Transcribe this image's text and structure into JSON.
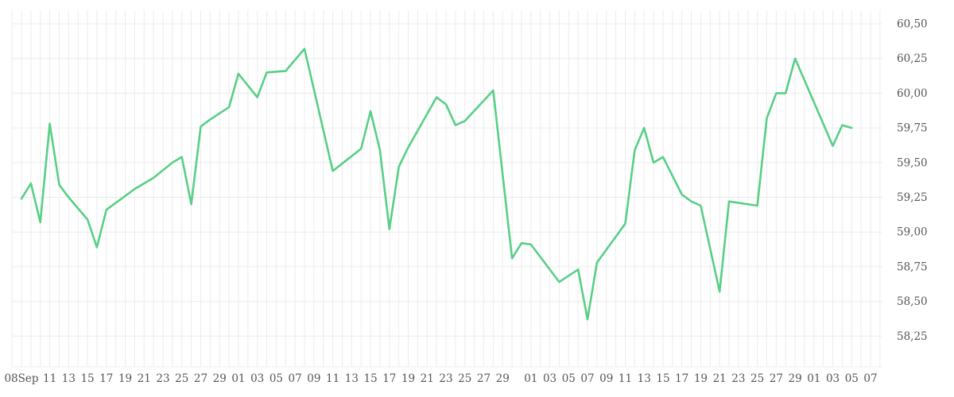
{
  "colors": {
    "line": "#58CF86",
    "grid": "#ececec",
    "axis_text": "#555555",
    "background": "#ffffff"
  },
  "chart_data": {
    "type": "line",
    "title": "",
    "xlabel": "",
    "ylabel": "",
    "legend": "none",
    "grid": "on",
    "x_unit": "calendar days, offset from first point (08 Sep)",
    "ylim": [
      58.0,
      60.625
    ],
    "xlim_days": [
      -1,
      91
    ],
    "y_ticks": [
      {
        "v": 60.5,
        "label": "60,50"
      },
      {
        "v": 60.25,
        "label": "60,25"
      },
      {
        "v": 60.0,
        "label": "60,00"
      },
      {
        "v": 59.75,
        "label": "59,75"
      },
      {
        "v": 59.5,
        "label": "59,50"
      },
      {
        "v": 59.25,
        "label": "59,25"
      },
      {
        "v": 59.0,
        "label": "59,00"
      },
      {
        "v": 58.75,
        "label": "58,75"
      },
      {
        "v": 58.5,
        "label": "58,50"
      },
      {
        "v": 58.25,
        "label": "58,25"
      }
    ],
    "x_ticks": [
      {
        "d": 0,
        "label": "08Sep"
      },
      {
        "d": 3,
        "label": "11"
      },
      {
        "d": 5,
        "label": "13"
      },
      {
        "d": 7,
        "label": "15"
      },
      {
        "d": 9,
        "label": "17"
      },
      {
        "d": 11,
        "label": "19"
      },
      {
        "d": 13,
        "label": "21"
      },
      {
        "d": 15,
        "label": "23"
      },
      {
        "d": 17,
        "label": "25"
      },
      {
        "d": 19,
        "label": "27"
      },
      {
        "d": 21,
        "label": "29"
      },
      {
        "d": 23,
        "label": "01"
      },
      {
        "d": 25,
        "label": "03"
      },
      {
        "d": 27,
        "label": "05"
      },
      {
        "d": 29,
        "label": "07"
      },
      {
        "d": 31,
        "label": "09"
      },
      {
        "d": 33,
        "label": "11"
      },
      {
        "d": 35,
        "label": "13"
      },
      {
        "d": 37,
        "label": "15"
      },
      {
        "d": 39,
        "label": "17"
      },
      {
        "d": 41,
        "label": "19"
      },
      {
        "d": 43,
        "label": "21"
      },
      {
        "d": 45,
        "label": "23"
      },
      {
        "d": 47,
        "label": "25"
      },
      {
        "d": 49,
        "label": "27"
      },
      {
        "d": 51,
        "label": "29"
      },
      {
        "d": 54,
        "label": "01"
      },
      {
        "d": 56,
        "label": "03"
      },
      {
        "d": 58,
        "label": "05"
      },
      {
        "d": 60,
        "label": "07"
      },
      {
        "d": 62,
        "label": "09"
      },
      {
        "d": 64,
        "label": "11"
      },
      {
        "d": 66,
        "label": "13"
      },
      {
        "d": 68,
        "label": "15"
      },
      {
        "d": 70,
        "label": "17"
      },
      {
        "d": 72,
        "label": "19"
      },
      {
        "d": 74,
        "label": "21"
      },
      {
        "d": 76,
        "label": "23"
      },
      {
        "d": 78,
        "label": "25"
      },
      {
        "d": 80,
        "label": "27"
      },
      {
        "d": 82,
        "label": "29"
      },
      {
        "d": 84,
        "label": "01"
      },
      {
        "d": 86,
        "label": "03"
      },
      {
        "d": 88,
        "label": "05"
      },
      {
        "d": 90,
        "label": "07"
      }
    ],
    "points": [
      [
        0,
        59.24
      ],
      [
        1,
        59.35
      ],
      [
        2,
        59.07
      ],
      [
        3,
        59.78
      ],
      [
        4,
        59.34
      ],
      [
        5,
        59.25
      ],
      [
        7,
        59.09
      ],
      [
        8,
        58.89
      ],
      [
        9,
        59.16
      ],
      [
        12,
        59.31
      ],
      [
        14,
        59.39
      ],
      [
        16,
        59.5
      ],
      [
        17,
        59.54
      ],
      [
        18,
        59.2
      ],
      [
        19,
        59.76
      ],
      [
        20,
        59.81
      ],
      [
        22,
        59.9
      ],
      [
        23,
        60.14
      ],
      [
        25,
        59.97
      ],
      [
        26,
        60.15
      ],
      [
        28,
        60.16
      ],
      [
        30,
        60.32
      ],
      [
        33,
        59.44
      ],
      [
        36,
        59.6
      ],
      [
        37,
        59.87
      ],
      [
        38,
        59.59
      ],
      [
        39,
        59.02
      ],
      [
        40,
        59.47
      ],
      [
        41,
        59.61
      ],
      [
        44,
        59.97
      ],
      [
        45,
        59.92
      ],
      [
        46,
        59.77
      ],
      [
        47,
        59.8
      ],
      [
        50,
        60.02
      ],
      [
        52,
        58.81
      ],
      [
        53,
        58.92
      ],
      [
        54,
        58.91
      ],
      [
        57,
        58.64
      ],
      [
        59,
        58.73
      ],
      [
        60,
        58.37
      ],
      [
        61,
        58.78
      ],
      [
        64,
        59.06
      ],
      [
        65,
        59.59
      ],
      [
        66,
        59.75
      ],
      [
        67,
        59.5
      ],
      [
        68,
        59.54
      ],
      [
        70,
        59.27
      ],
      [
        71,
        59.22
      ],
      [
        72,
        59.19
      ],
      [
        74,
        58.57
      ],
      [
        75,
        59.22
      ],
      [
        78,
        59.19
      ],
      [
        79,
        59.82
      ],
      [
        80,
        60.0
      ],
      [
        81,
        60.0
      ],
      [
        82,
        60.25
      ],
      [
        86,
        59.62
      ],
      [
        87,
        59.77
      ],
      [
        88,
        59.75
      ]
    ]
  }
}
